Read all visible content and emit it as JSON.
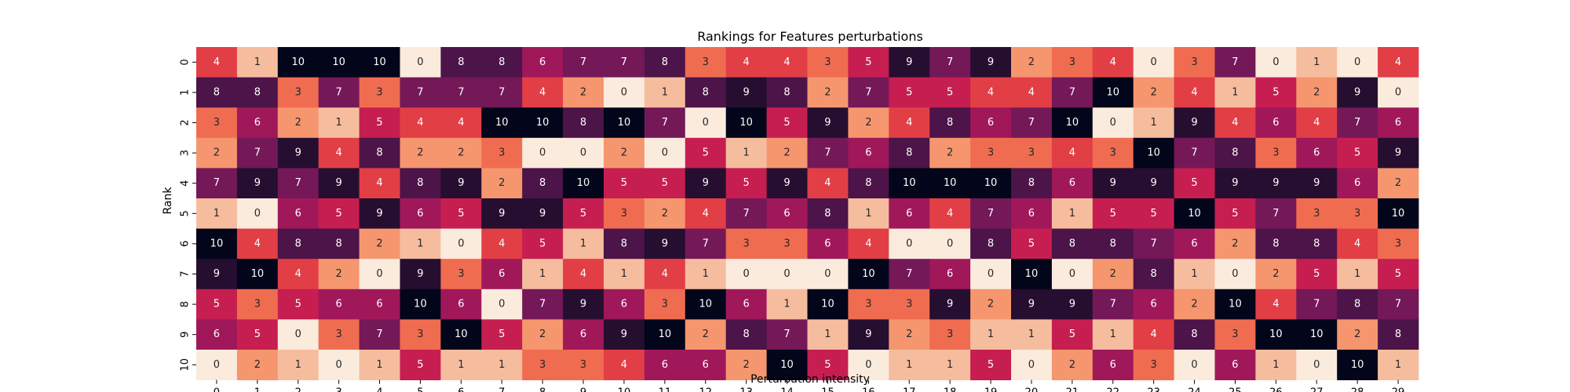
{
  "chart_data": {
    "type": "heatmap",
    "title": "Rankings for Features perturbations",
    "xlabel": "Perturbation intensity",
    "ylabel": "Rank",
    "x_categories": [
      "0",
      "1",
      "2",
      "3",
      "4",
      "5",
      "6",
      "7",
      "8",
      "9",
      "10",
      "11",
      "12",
      "13",
      "14",
      "15",
      "16",
      "17",
      "18",
      "19",
      "20",
      "21",
      "22",
      "23",
      "24",
      "25",
      "26",
      "27",
      "28",
      "29"
    ],
    "y_categories": [
      "0",
      "1",
      "2",
      "3",
      "4",
      "5",
      "6",
      "7",
      "8",
      "9",
      "10"
    ],
    "value_range": [
      0,
      10
    ],
    "colormap": "rocket_r",
    "colors": {
      "low": "#faebdd",
      "high": "#03051a"
    },
    "annotations": true,
    "values": [
      [
        4,
        1,
        10,
        10,
        10,
        0,
        8,
        8,
        6,
        7,
        7,
        8,
        3,
        4,
        4,
        3,
        5,
        9,
        7,
        9,
        2,
        3,
        4,
        0,
        3,
        7,
        0,
        1,
        0,
        4
      ],
      [
        8,
        8,
        3,
        7,
        3,
        7,
        7,
        7,
        4,
        2,
        0,
        1,
        8,
        9,
        8,
        2,
        7,
        5,
        5,
        4,
        4,
        7,
        10,
        2,
        4,
        1,
        5,
        2,
        9,
        0
      ],
      [
        3,
        6,
        2,
        1,
        5,
        4,
        4,
        10,
        10,
        8,
        10,
        7,
        0,
        10,
        5,
        9,
        2,
        4,
        8,
        6,
        7,
        10,
        0,
        1,
        9,
        4,
        6,
        4,
        7,
        6
      ],
      [
        2,
        7,
        9,
        4,
        8,
        2,
        2,
        3,
        0,
        0,
        2,
        0,
        5,
        1,
        2,
        7,
        6,
        8,
        2,
        3,
        3,
        4,
        3,
        10,
        7,
        8,
        3,
        6,
        5,
        9
      ],
      [
        7,
        9,
        7,
        9,
        4,
        8,
        9,
        2,
        8,
        10,
        5,
        5,
        9,
        5,
        9,
        4,
        8,
        10,
        10,
        10,
        8,
        6,
        9,
        9,
        5,
        9,
        9,
        9,
        6,
        2
      ],
      [
        1,
        0,
        6,
        5,
        9,
        6,
        5,
        9,
        9,
        5,
        3,
        2,
        4,
        7,
        6,
        8,
        1,
        6,
        4,
        7,
        6,
        1,
        5,
        5,
        10,
        5,
        7,
        3,
        3,
        10
      ],
      [
        10,
        4,
        8,
        8,
        2,
        1,
        0,
        4,
        5,
        1,
        8,
        9,
        7,
        3,
        3,
        6,
        4,
        0,
        0,
        8,
        5,
        8,
        8,
        7,
        6,
        2,
        8,
        8,
        4,
        3
      ],
      [
        9,
        10,
        4,
        2,
        0,
        9,
        3,
        6,
        1,
        4,
        1,
        4,
        1,
        0,
        0,
        0,
        10,
        7,
        6,
        0,
        10,
        0,
        2,
        8,
        1,
        0,
        2,
        5,
        1,
        5
      ],
      [
        5,
        3,
        5,
        6,
        6,
        10,
        6,
        0,
        7,
        9,
        6,
        3,
        10,
        6,
        1,
        10,
        3,
        3,
        9,
        2,
        9,
        9,
        7,
        6,
        2,
        10,
        4,
        7,
        8,
        7
      ],
      [
        6,
        5,
        0,
        3,
        7,
        3,
        10,
        5,
        2,
        6,
        9,
        10,
        2,
        8,
        7,
        1,
        9,
        2,
        3,
        1,
        1,
        5,
        1,
        4,
        8,
        3,
        10,
        10,
        2,
        8
      ],
      [
        0,
        2,
        1,
        0,
        1,
        5,
        1,
        1,
        3,
        3,
        4,
        6,
        6,
        2,
        10,
        5,
        0,
        1,
        1,
        5,
        0,
        2,
        6,
        3,
        0,
        6,
        1,
        0,
        10,
        1
      ]
    ]
  }
}
